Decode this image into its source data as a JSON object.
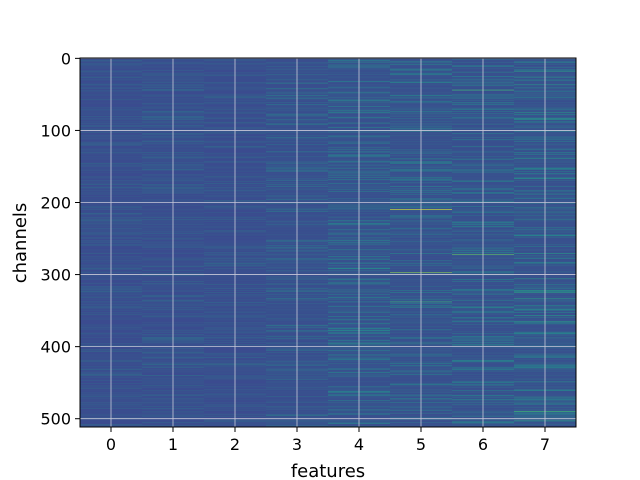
{
  "chart_data": {
    "type": "heatmap",
    "title": "",
    "xlabel": "features",
    "ylabel": "channels",
    "x_ticks": [
      "0",
      "1",
      "2",
      "3",
      "4",
      "5",
      "6",
      "7"
    ],
    "y_ticks": [
      "0",
      "100",
      "200",
      "300",
      "400",
      "500"
    ],
    "xlim": [
      -0.5,
      7.5
    ],
    "ylim": [
      511.5,
      -0.5
    ],
    "y_axis_inverted": true,
    "grid": true,
    "colormap": "viridis",
    "n_columns": 8,
    "n_rows": 512,
    "colors": {
      "low": "#3b4b8f",
      "mid": "#2b8b8d",
      "high": "#fde725",
      "grid": "#c8c8d8"
    },
    "column_mean_intensity": [
      0.08,
      0.09,
      0.08,
      0.11,
      0.14,
      0.13,
      0.14,
      0.16
    ],
    "highlights": [
      {
        "x": 5,
        "y": 55,
        "value": 0.45
      },
      {
        "x": 5,
        "y": 210,
        "value": 0.95
      },
      {
        "x": 5,
        "y": 297,
        "value": 0.85
      },
      {
        "x": 5,
        "y": 338,
        "value": 0.7
      },
      {
        "x": 5,
        "y": 395,
        "value": 0.55
      },
      {
        "x": 6,
        "y": 44,
        "value": 0.75
      },
      {
        "x": 6,
        "y": 272,
        "value": 0.8
      },
      {
        "x": 4,
        "y": 375,
        "value": 0.5
      },
      {
        "x": 4,
        "y": 462,
        "value": 0.5
      },
      {
        "x": 7,
        "y": 490,
        "value": 0.75
      },
      {
        "x": 7,
        "y": 245,
        "value": 0.45
      },
      {
        "x": 0,
        "y": 500,
        "value": 0.45
      }
    ]
  }
}
